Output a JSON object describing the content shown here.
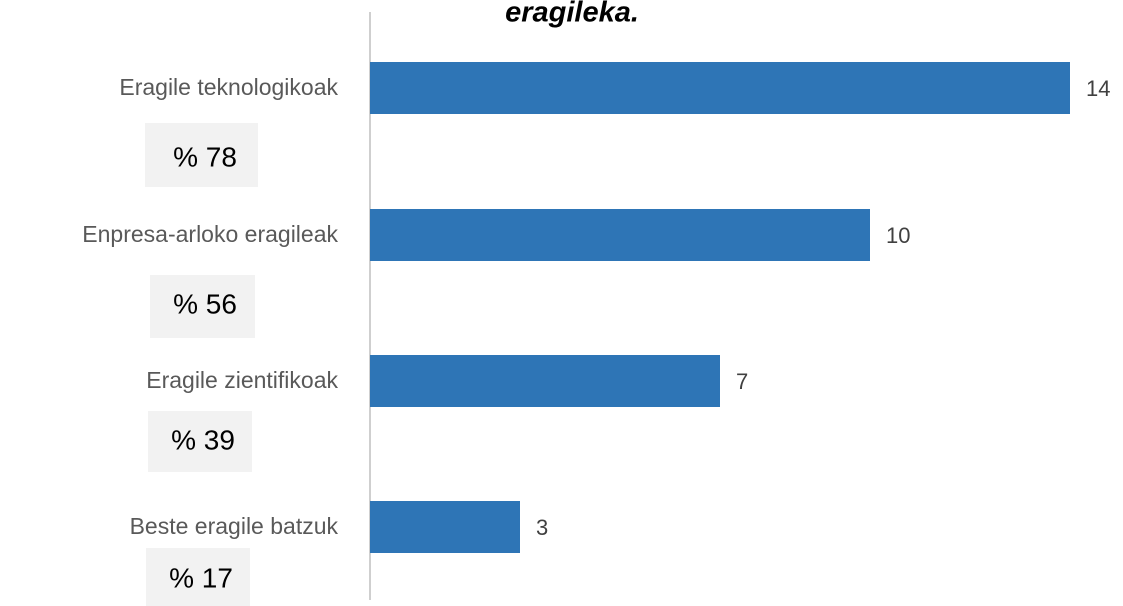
{
  "chart_data": {
    "type": "bar",
    "orientation": "horizontal",
    "title": "eragileka.",
    "categories": [
      "Eragile teknologikoak",
      "Enpresa-arloko eragileak",
      "Eragile zientifikoak",
      "Beste eragile batzuk"
    ],
    "values": [
      14,
      10,
      7,
      3
    ],
    "color": "#2e75b6",
    "annotations": [
      "% 78",
      "% 56",
      "% 39",
      "% 17"
    ],
    "xlim": [
      0,
      14
    ]
  }
}
